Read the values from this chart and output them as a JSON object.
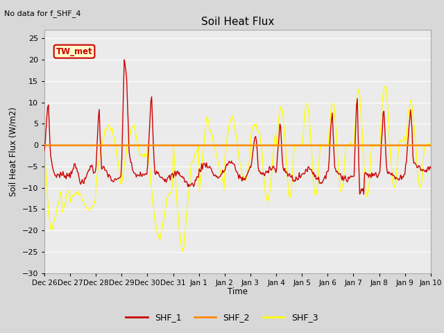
{
  "title": "Soil Heat Flux",
  "ylabel": "Soil Heat Flux (W/m2)",
  "xlabel": "Time",
  "note": "No data for f_SHF_4",
  "legend_label": "TW_met",
  "ylim": [
    -30,
    27
  ],
  "yticks": [
    -30,
    -25,
    -20,
    -15,
    -10,
    -5,
    0,
    5,
    10,
    15,
    20,
    25
  ],
  "colors": {
    "SHF_1": "#cc0000",
    "SHF_2": "#ff8800",
    "SHF_3": "#ffff00"
  },
  "bg_color": "#d8d8d8",
  "plot_bg": "#ebebeb",
  "grid_color": "#ffffff",
  "hline_color": "#ff8800",
  "xtick_labels": [
    "Dec 26",
    "Dec 27",
    "Dec 28",
    "Dec 29",
    "Dec 30",
    "Dec 31",
    "Jan 1",
    "Jan 2",
    "Jan 3",
    "Jan 4",
    "Jan 5",
    "Jan 6",
    "Jan 7",
    "Jan 8",
    "Jan 9",
    "Jan 10"
  ],
  "n_points": 480
}
